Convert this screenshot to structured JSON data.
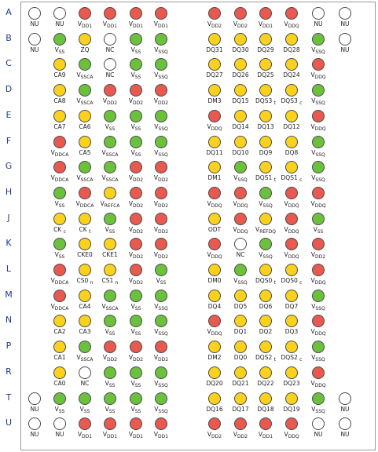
{
  "rows": [
    {
      "label": "A",
      "cells": [
        {
          "c": "white",
          "t": "NU"
        },
        {
          "c": "white",
          "t": "NU"
        },
        {
          "c": "red",
          "t": "V|DD1"
        },
        {
          "c": "red",
          "t": "V|DD1"
        },
        {
          "c": "red",
          "t": "V|DD1"
        },
        {
          "c": "red",
          "t": "V|DD1"
        },
        {
          "c": "red",
          "t": "V|DD2"
        },
        {
          "c": "red",
          "t": "V|DD2"
        },
        {
          "c": "red",
          "t": "V|DD1"
        },
        {
          "c": "red",
          "t": "V|DDQ"
        },
        {
          "c": "white",
          "t": "NU"
        },
        {
          "c": "white",
          "t": "NU"
        }
      ]
    },
    {
      "label": "B",
      "cells": [
        {
          "c": "white",
          "t": "NU"
        },
        {
          "c": "green",
          "t": "V|SS"
        },
        {
          "c": "yellow",
          "t": "ZQ"
        },
        {
          "c": "white",
          "t": "NC"
        },
        {
          "c": "green",
          "t": "V|SS"
        },
        {
          "c": "green",
          "t": "V|SSQ"
        },
        {
          "c": "yellow",
          "t": "DQ31"
        },
        {
          "c": "yellow",
          "t": "DQ30"
        },
        {
          "c": "yellow",
          "t": "DQ29"
        },
        {
          "c": "yellow",
          "t": "DQ28"
        },
        {
          "c": "green",
          "t": "V|SSQ"
        },
        {
          "c": "white",
          "t": "NU"
        }
      ]
    },
    {
      "label": "C",
      "cells": [
        null,
        {
          "c": "yellow",
          "t": "CA9"
        },
        {
          "c": "green",
          "t": "V|SSCA"
        },
        {
          "c": "white",
          "t": "NC"
        },
        {
          "c": "green",
          "t": "V|SS"
        },
        {
          "c": "green",
          "t": "V|SSQ"
        },
        {
          "c": "yellow",
          "t": "DQ27"
        },
        {
          "c": "yellow",
          "t": "DQ26"
        },
        {
          "c": "yellow",
          "t": "DQ25"
        },
        {
          "c": "yellow",
          "t": "DQ24"
        },
        {
          "c": "red",
          "t": "V|DDQ"
        },
        null
      ]
    },
    {
      "label": "D",
      "cells": [
        null,
        {
          "c": "yellow",
          "t": "CA8"
        },
        {
          "c": "green",
          "t": "V|SSCA"
        },
        {
          "c": "red",
          "t": "V|DD2"
        },
        {
          "c": "red",
          "t": "V|DD2"
        },
        {
          "c": "red",
          "t": "V|DD2"
        },
        {
          "c": "yellow",
          "t": "DM3"
        },
        {
          "c": "yellow",
          "t": "DQ15"
        },
        {
          "c": "yellow",
          "t": "DQS3_t"
        },
        {
          "c": "yellow",
          "t": "DQS3_c"
        },
        {
          "c": "green",
          "t": "V|SSQ"
        },
        null
      ]
    },
    {
      "label": "E",
      "cells": [
        null,
        {
          "c": "yellow",
          "t": "CA7"
        },
        {
          "c": "yellow",
          "t": "CA6"
        },
        {
          "c": "green",
          "t": "V|SS"
        },
        {
          "c": "green",
          "t": "V|SS"
        },
        {
          "c": "green",
          "t": "V|SSQ"
        },
        {
          "c": "red",
          "t": "V|DDQ"
        },
        {
          "c": "yellow",
          "t": "DQ14"
        },
        {
          "c": "yellow",
          "t": "DQ13"
        },
        {
          "c": "yellow",
          "t": "DQ12"
        },
        {
          "c": "red",
          "t": "V|DDQ"
        },
        null
      ]
    },
    {
      "label": "F",
      "cells": [
        null,
        {
          "c": "red",
          "t": "V|DDCA"
        },
        {
          "c": "yellow",
          "t": "CA5"
        },
        {
          "c": "green",
          "t": "V|SSCA"
        },
        {
          "c": "green",
          "t": "V|SS"
        },
        {
          "c": "green",
          "t": "V|SSQ"
        },
        {
          "c": "yellow",
          "t": "DQ11"
        },
        {
          "c": "yellow",
          "t": "DQ10"
        },
        {
          "c": "yellow",
          "t": "DQ9"
        },
        {
          "c": "yellow",
          "t": "DQ8"
        },
        {
          "c": "green",
          "t": "V|SSQ"
        },
        null
      ]
    },
    {
      "label": "G",
      "cells": [
        null,
        {
          "c": "red",
          "t": "V|DDCA"
        },
        {
          "c": "green",
          "t": "V|SSCA"
        },
        {
          "c": "green",
          "t": "V|SSCA"
        },
        {
          "c": "red",
          "t": "V|DD2"
        },
        {
          "c": "red",
          "t": "V|DD2"
        },
        {
          "c": "yellow",
          "t": "DM1"
        },
        {
          "c": "green",
          "t": "V|SSQ"
        },
        {
          "c": "yellow",
          "t": "DQS1_t"
        },
        {
          "c": "yellow",
          "t": "DQS1_c"
        },
        {
          "c": "green",
          "t": "V|SSQ"
        },
        null
      ]
    },
    {
      "label": "H",
      "cells": [
        null,
        {
          "c": "green",
          "t": "V|SS"
        },
        {
          "c": "red",
          "t": "V|DDCA"
        },
        {
          "c": "yellow",
          "t": "V|REFCA"
        },
        {
          "c": "red",
          "t": "V|DD2"
        },
        {
          "c": "red",
          "t": "V|DD2"
        },
        {
          "c": "red",
          "t": "V|DDQ"
        },
        {
          "c": "red",
          "t": "V|DDQ"
        },
        {
          "c": "green",
          "t": "V|SSQ"
        },
        {
          "c": "red",
          "t": "V|DDQ"
        },
        {
          "c": "red",
          "t": "V|DDQ"
        },
        null
      ]
    },
    {
      "label": "J",
      "cells": [
        null,
        {
          "c": "yellow",
          "t": "CK_c"
        },
        {
          "c": "yellow",
          "t": "CK_t"
        },
        {
          "c": "green",
          "t": "V|SS"
        },
        {
          "c": "red",
          "t": "V|DD2"
        },
        {
          "c": "red",
          "t": "V|DD2"
        },
        {
          "c": "yellow",
          "t": "ODT"
        },
        {
          "c": "red",
          "t": "V|DDQ"
        },
        {
          "c": "yellow",
          "t": "V|REFDQ"
        },
        {
          "c": "red",
          "t": "V|DDQ"
        },
        {
          "c": "green",
          "t": "V|SS"
        },
        null
      ]
    },
    {
      "label": "K",
      "cells": [
        null,
        {
          "c": "green",
          "t": "V|SS"
        },
        {
          "c": "yellow",
          "t": "CKE0"
        },
        {
          "c": "yellow",
          "t": "CKE1"
        },
        {
          "c": "red",
          "t": "V|DD2"
        },
        {
          "c": "red",
          "t": "V|DD2"
        },
        {
          "c": "red",
          "t": "V|DDQ"
        },
        {
          "c": "white",
          "t": "NC"
        },
        {
          "c": "green",
          "t": "V|SSQ"
        },
        {
          "c": "red",
          "t": "V|DDQ"
        },
        {
          "c": "red",
          "t": "V|DD2"
        },
        null
      ]
    },
    {
      "label": "L",
      "cells": [
        null,
        {
          "c": "red",
          "t": "V|DDCA"
        },
        {
          "c": "yellow",
          "t": "CS0_n"
        },
        {
          "c": "yellow",
          "t": "CS1_n"
        },
        {
          "c": "red",
          "t": "V|DD2"
        },
        {
          "c": "green",
          "t": "V|SS"
        },
        {
          "c": "yellow",
          "t": "DM0"
        },
        {
          "c": "green",
          "t": "V|SSQ"
        },
        {
          "c": "yellow",
          "t": "DQS0_t"
        },
        {
          "c": "yellow",
          "t": "DQS0_c"
        },
        {
          "c": "red",
          "t": "V|DDQ"
        },
        null
      ]
    },
    {
      "label": "M",
      "cells": [
        null,
        {
          "c": "red",
          "t": "V|DDCA"
        },
        {
          "c": "yellow",
          "t": "CA4"
        },
        {
          "c": "green",
          "t": "V|SSCA"
        },
        {
          "c": "green",
          "t": "V|SS"
        },
        {
          "c": "green",
          "t": "V|SSQ"
        },
        {
          "c": "yellow",
          "t": "DQ4"
        },
        {
          "c": "yellow",
          "t": "DQ5"
        },
        {
          "c": "yellow",
          "t": "DQ6"
        },
        {
          "c": "yellow",
          "t": "DQ7"
        },
        {
          "c": "green",
          "t": "V|SSQ"
        },
        null
      ]
    },
    {
      "label": "N",
      "cells": [
        null,
        {
          "c": "yellow",
          "t": "CA2"
        },
        {
          "c": "yellow",
          "t": "CA3"
        },
        {
          "c": "green",
          "t": "V|SS"
        },
        {
          "c": "green",
          "t": "V|SS"
        },
        {
          "c": "green",
          "t": "V|SSQ"
        },
        {
          "c": "red",
          "t": "V|DDQ"
        },
        {
          "c": "yellow",
          "t": "DQ1"
        },
        {
          "c": "yellow",
          "t": "DQ2"
        },
        {
          "c": "yellow",
          "t": "DQ3"
        },
        {
          "c": "red",
          "t": "V|DDQ"
        },
        null
      ]
    },
    {
      "label": "P",
      "cells": [
        null,
        {
          "c": "yellow",
          "t": "CA1"
        },
        {
          "c": "green",
          "t": "V|SSCA"
        },
        {
          "c": "red",
          "t": "V|DD2"
        },
        {
          "c": "red",
          "t": "V|DD2"
        },
        {
          "c": "red",
          "t": "V|DD2"
        },
        {
          "c": "yellow",
          "t": "DM2"
        },
        {
          "c": "yellow",
          "t": "DQ0"
        },
        {
          "c": "yellow",
          "t": "DQS2_t"
        },
        {
          "c": "yellow",
          "t": "DQS2_c"
        },
        {
          "c": "green",
          "t": "V|SSQ"
        },
        null
      ]
    },
    {
      "label": "R",
      "cells": [
        null,
        {
          "c": "yellow",
          "t": "CA0"
        },
        {
          "c": "white",
          "t": "NC"
        },
        {
          "c": "green",
          "t": "V|SS"
        },
        {
          "c": "green",
          "t": "V|SS"
        },
        {
          "c": "green",
          "t": "V|SSQ"
        },
        {
          "c": "yellow",
          "t": "DQ20"
        },
        {
          "c": "yellow",
          "t": "DQ21"
        },
        {
          "c": "yellow",
          "t": "DQ22"
        },
        {
          "c": "yellow",
          "t": "DQ23"
        },
        {
          "c": "red",
          "t": "V|DDQ"
        },
        null
      ]
    },
    {
      "label": "T",
      "cells": [
        {
          "c": "white",
          "t": "NU"
        },
        {
          "c": "green",
          "t": "V|SS"
        },
        {
          "c": "green",
          "t": "V|SS"
        },
        {
          "c": "green",
          "t": "V|SS"
        },
        {
          "c": "green",
          "t": "V|SS"
        },
        {
          "c": "green",
          "t": "V|SSQ"
        },
        {
          "c": "yellow",
          "t": "DQ16"
        },
        {
          "c": "yellow",
          "t": "DQ17"
        },
        {
          "c": "yellow",
          "t": "DQ18"
        },
        {
          "c": "yellow",
          "t": "DQ19"
        },
        {
          "c": "green",
          "t": "V|SSQ"
        },
        {
          "c": "white",
          "t": "NU"
        }
      ]
    },
    {
      "label": "U",
      "cells": [
        {
          "c": "white",
          "t": "NU"
        },
        {
          "c": "white",
          "t": "NU"
        },
        {
          "c": "red",
          "t": "V|DD1"
        },
        {
          "c": "red",
          "t": "V|DD1"
        },
        {
          "c": "red",
          "t": "V|DD1"
        },
        {
          "c": "red",
          "t": "V|DD1"
        },
        {
          "c": "red",
          "t": "V|DD2"
        },
        {
          "c": "red",
          "t": "V|DD2"
        },
        {
          "c": "red",
          "t": "V|DD1"
        },
        {
          "c": "red",
          "t": "V|DDQ"
        },
        {
          "c": "white",
          "t": "NU"
        },
        {
          "c": "white",
          "t": "NU"
        }
      ]
    }
  ],
  "colors": {
    "red": "#e8594f",
    "yellow": "#fad21e",
    "green": "#6cc13c",
    "white": "#ffffff"
  }
}
